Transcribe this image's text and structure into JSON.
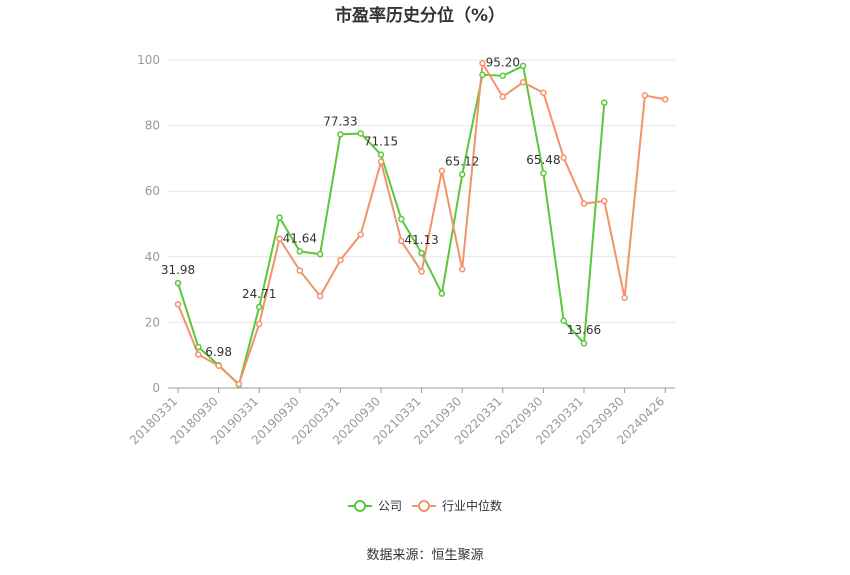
{
  "chart_data": {
    "type": "line",
    "title": "市盈率历史分位（%）",
    "xlabel": "",
    "ylabel": "",
    "ylim": [
      0,
      100
    ],
    "yticks": [
      0,
      20,
      40,
      60,
      80,
      100
    ],
    "grid": true,
    "legend_position": "bottom",
    "x_tick_labels": [
      "20180331",
      "20180930",
      "20190331",
      "20190930",
      "20200331",
      "20200930",
      "20210331",
      "20210930",
      "20220331",
      "20220930",
      "20230331",
      "20230930",
      "20240426"
    ],
    "series": [
      {
        "name": "公司",
        "color": "#5ac83c",
        "values": [
          31.98,
          12.5,
          6.98,
          1.0,
          24.71,
          52.0,
          41.64,
          40.8,
          77.33,
          77.6,
          71.15,
          51.5,
          41.13,
          28.8,
          65.12,
          95.5,
          95.2,
          98.2,
          65.48,
          20.5,
          13.66,
          87.0,
          null,
          null,
          null
        ]
      },
      {
        "name": "行业中位数",
        "color": "#f2936a",
        "values": [
          25.5,
          10.2,
          6.8,
          1.2,
          19.5,
          45.5,
          35.8,
          28.0,
          39.0,
          46.8,
          69.0,
          44.8,
          35.5,
          66.2,
          36.2,
          99.0,
          88.8,
          93.2,
          90.0,
          70.2,
          56.2,
          57.0,
          27.5,
          89.2,
          88.0
        ]
      }
    ],
    "data_labels": [
      {
        "series": 0,
        "index": 0,
        "text": "31.98"
      },
      {
        "series": 0,
        "index": 2,
        "text": "6.98"
      },
      {
        "series": 0,
        "index": 4,
        "text": "24.71"
      },
      {
        "series": 0,
        "index": 6,
        "text": "41.64"
      },
      {
        "series": 0,
        "index": 8,
        "text": "77.33"
      },
      {
        "series": 0,
        "index": 10,
        "text": "71.15"
      },
      {
        "series": 0,
        "index": 12,
        "text": "41.13"
      },
      {
        "series": 0,
        "index": 14,
        "text": "65.12"
      },
      {
        "series": 0,
        "index": 16,
        "text": "95.20"
      },
      {
        "series": 0,
        "index": 18,
        "text": "65.48"
      },
      {
        "series": 0,
        "index": 20,
        "text": "13.66"
      }
    ]
  },
  "legend": [
    {
      "label": "公司",
      "color": "#5ac83c"
    },
    {
      "label": "行业中位数",
      "color": "#f2936a"
    }
  ],
  "source": "数据来源：恒生聚源"
}
